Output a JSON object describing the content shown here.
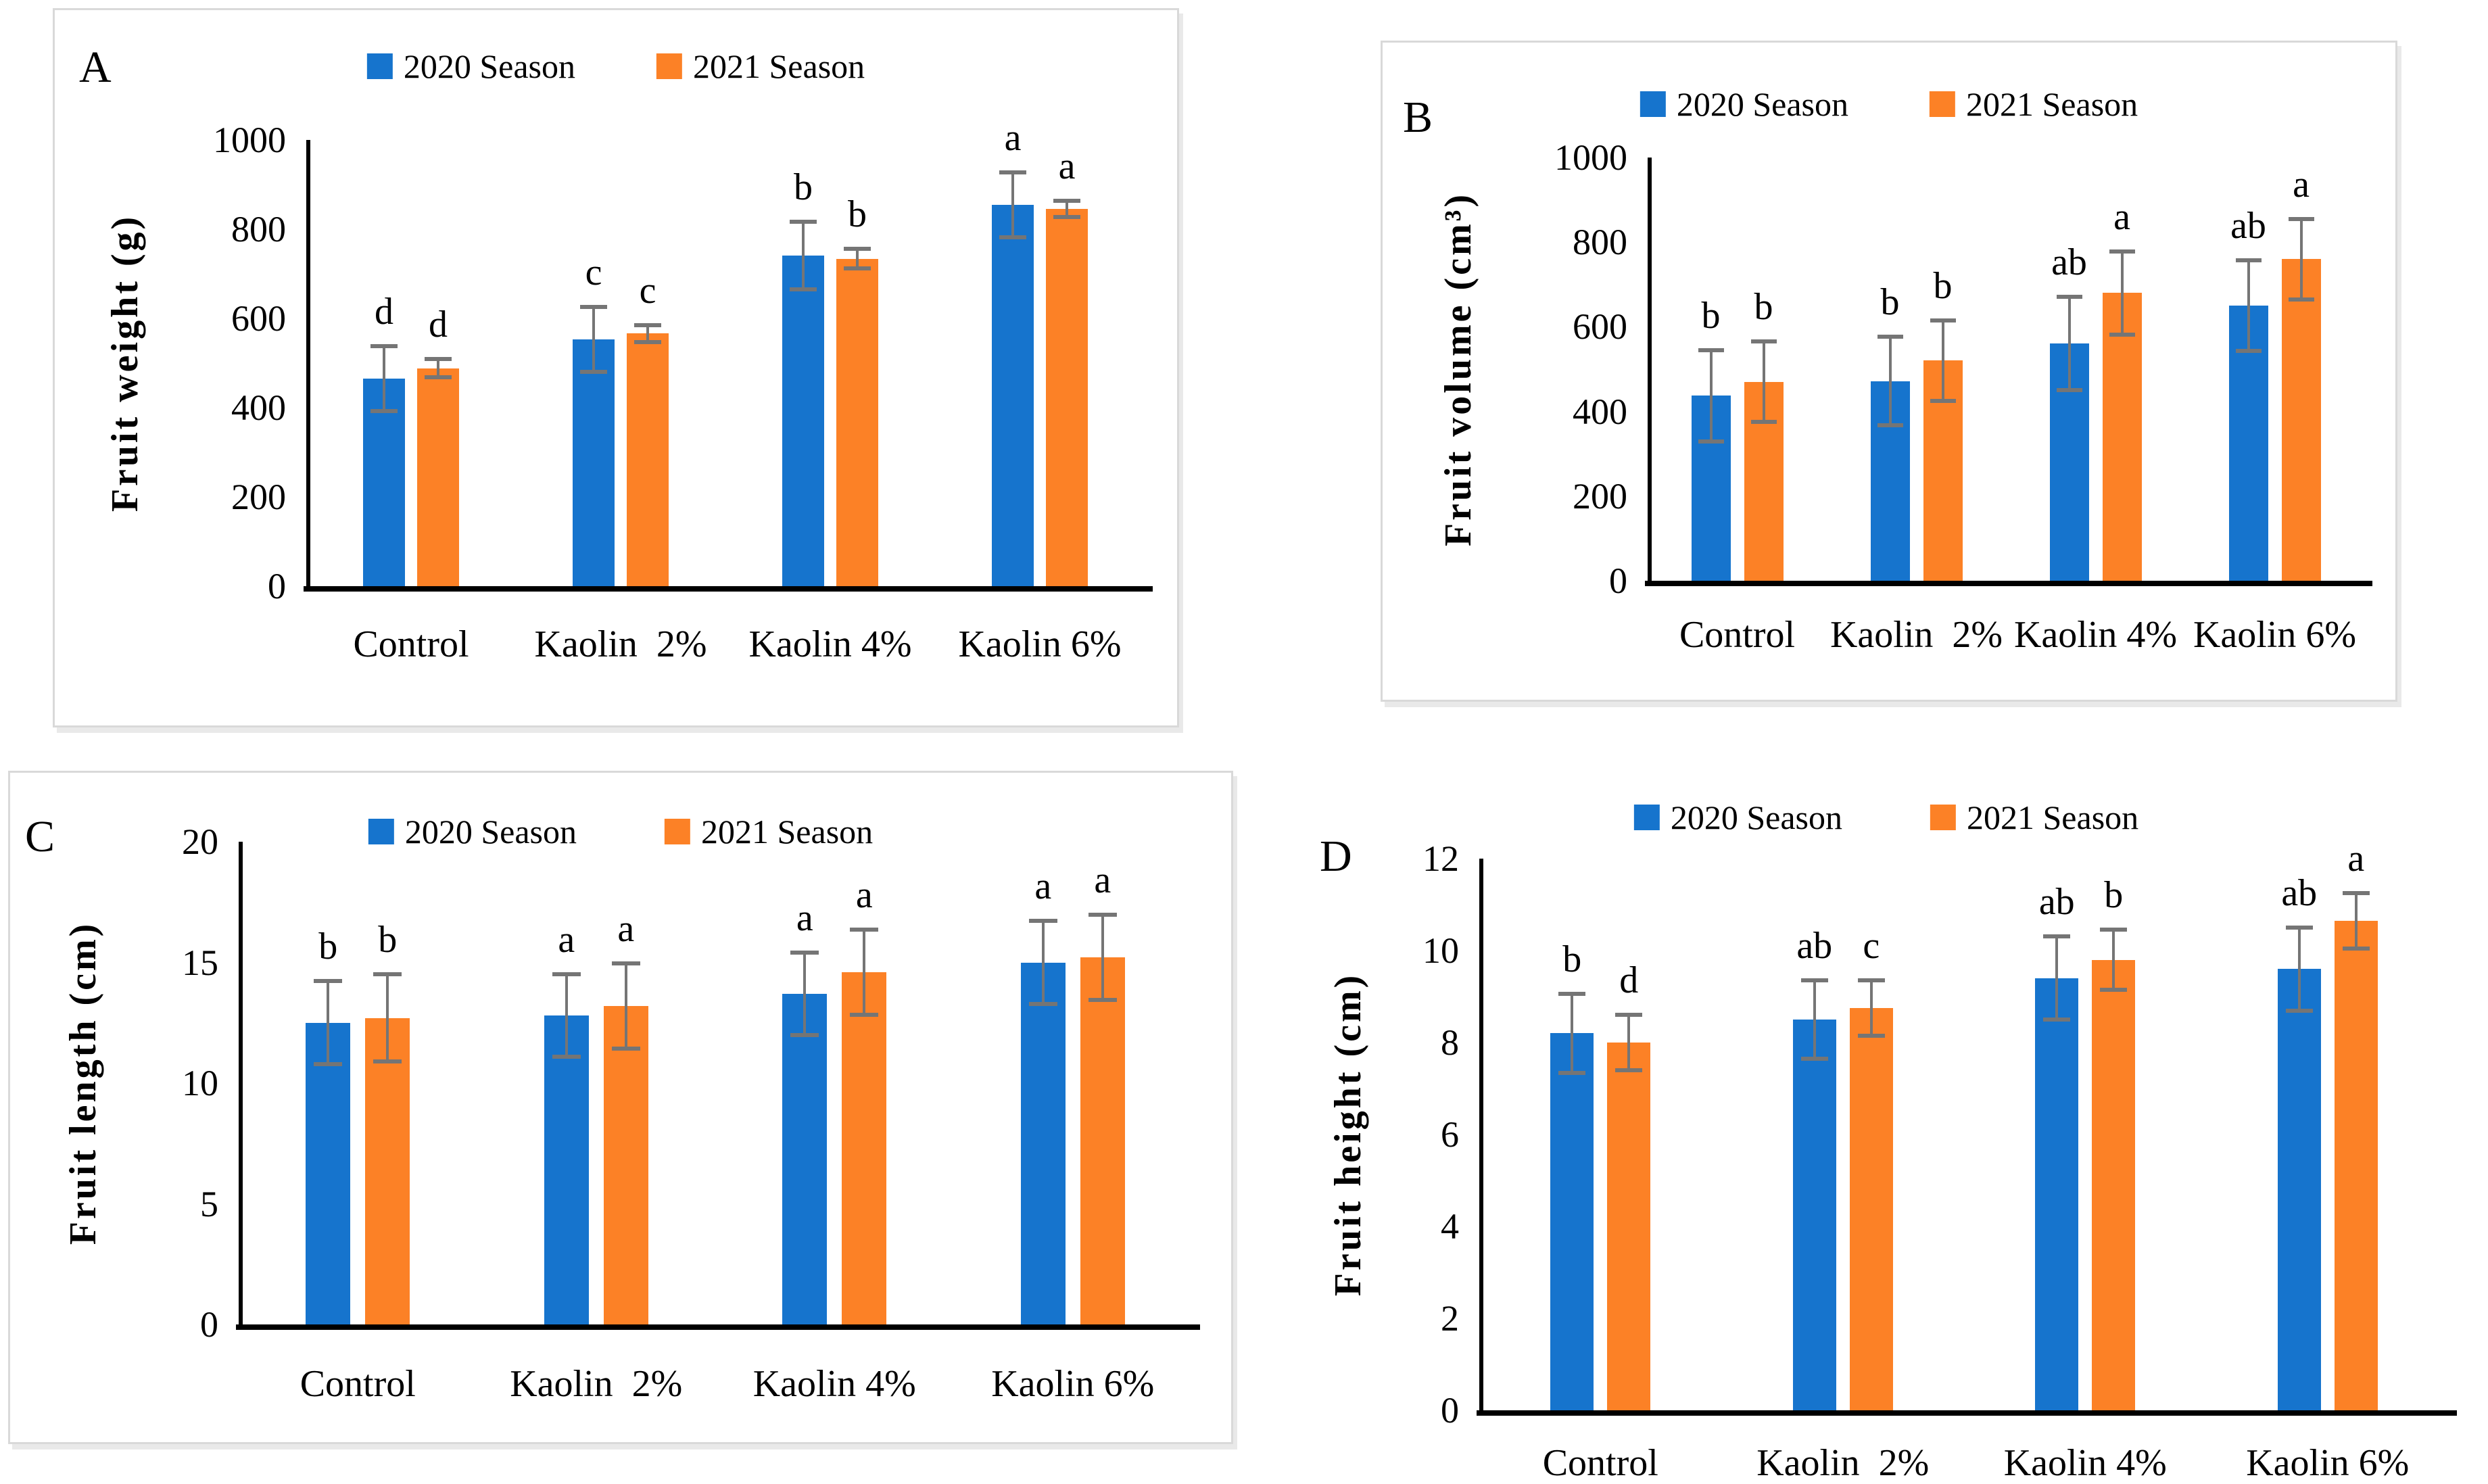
{
  "figure": {
    "background": "#ffffff",
    "description": "Four-panel bar chart figure comparing kaolin treatments across two seasons"
  },
  "colors": {
    "season_2020": "#1674CD",
    "season_2021": "#FC8126",
    "error_bar": "#757575",
    "axis": "#000000",
    "panel_border": "#d9d9d9"
  },
  "chart_data": [
    {
      "type": "bar",
      "panel_label": "A",
      "title": "",
      "xlabel": "",
      "ylabel": "Fruit weight (g)",
      "ylim": [
        0,
        1000
      ],
      "ytick_step": 200,
      "grid": false,
      "legend_position": "top-center",
      "error_bars": true,
      "categories": [
        "Control",
        "Kaolin  2%",
        "Kaolin 4%",
        "Kaolin 6%"
      ],
      "series": [
        {
          "name": "2020 Season",
          "values": [
            465,
            553,
            741,
            855
          ],
          "errors": [
            77,
            77,
            80,
            77
          ],
          "sig_letters": [
            "d",
            "c",
            "b",
            "a"
          ]
        },
        {
          "name": "2021 Season",
          "values": [
            488,
            566,
            734,
            845
          ],
          "errors": [
            25,
            24,
            26,
            23
          ],
          "sig_letters": [
            "d",
            "c",
            "b",
            "a"
          ]
        }
      ]
    },
    {
      "type": "bar",
      "panel_label": "B",
      "title": "",
      "xlabel": "",
      "ylabel": "Fruit volume (cm³)",
      "ylim": [
        0,
        1000
      ],
      "ytick_step": 200,
      "grid": false,
      "legend_position": "top-center",
      "error_bars": true,
      "categories": [
        "Control",
        "Kaolin  2%",
        "Kaolin 4%",
        "Kaolin 6%"
      ],
      "series": [
        {
          "name": "2020 Season",
          "values": [
            437,
            472,
            560,
            650
          ],
          "errors": [
            112,
            110,
            115,
            112
          ],
          "sig_letters": [
            "b",
            "b",
            "ab",
            "ab"
          ]
        },
        {
          "name": "2021 Season",
          "values": [
            470,
            520,
            680,
            760
          ],
          "errors": [
            100,
            100,
            103,
            100
          ],
          "sig_letters": [
            "b",
            "b",
            "a",
            "a"
          ]
        }
      ]
    },
    {
      "type": "bar",
      "panel_label": "C",
      "title": "",
      "xlabel": "",
      "ylabel": "Fruit length (cm)",
      "ylim": [
        0,
        20
      ],
      "ytick_step": 5,
      "grid": false,
      "legend_position": "top-center",
      "error_bars": true,
      "categories": [
        "Control",
        "Kaolin  2%",
        "Kaolin 4%",
        "Kaolin 6%"
      ],
      "series": [
        {
          "name": "2020 Season",
          "values": [
            12.5,
            12.8,
            13.7,
            15.0
          ],
          "errors": [
            1.8,
            1.8,
            1.8,
            1.8
          ],
          "sig_letters": [
            "b",
            "a",
            "a",
            "a"
          ]
        },
        {
          "name": "2021 Season",
          "values": [
            12.7,
            13.2,
            14.6,
            15.2
          ],
          "errors": [
            1.9,
            1.85,
            1.85,
            1.85
          ],
          "sig_letters": [
            "b",
            "a",
            "a",
            "a"
          ]
        }
      ]
    },
    {
      "type": "bar",
      "panel_label": "D",
      "title": "",
      "xlabel": "",
      "ylabel": "Fruit height (cm)",
      "ylim": [
        0,
        12
      ],
      "ytick_step": 2,
      "grid": false,
      "legend_position": "top-center",
      "error_bars": true,
      "categories": [
        "Control",
        "Kaolin  2%",
        "Kaolin 4%",
        "Kaolin 6%"
      ],
      "series": [
        {
          "name": "2020 Season",
          "values": [
            8.2,
            8.5,
            9.4,
            9.6
          ],
          "errors": [
            0.9,
            0.9,
            0.95,
            0.95
          ],
          "sig_letters": [
            "b",
            "ab",
            "ab",
            "ab"
          ]
        },
        {
          "name": "2021 Season",
          "values": [
            8.0,
            8.75,
            9.8,
            10.65
          ],
          "errors": [
            0.65,
            0.65,
            0.7,
            0.65
          ],
          "sig_letters": [
            "d",
            "c",
            "b",
            "a"
          ]
        }
      ]
    }
  ]
}
